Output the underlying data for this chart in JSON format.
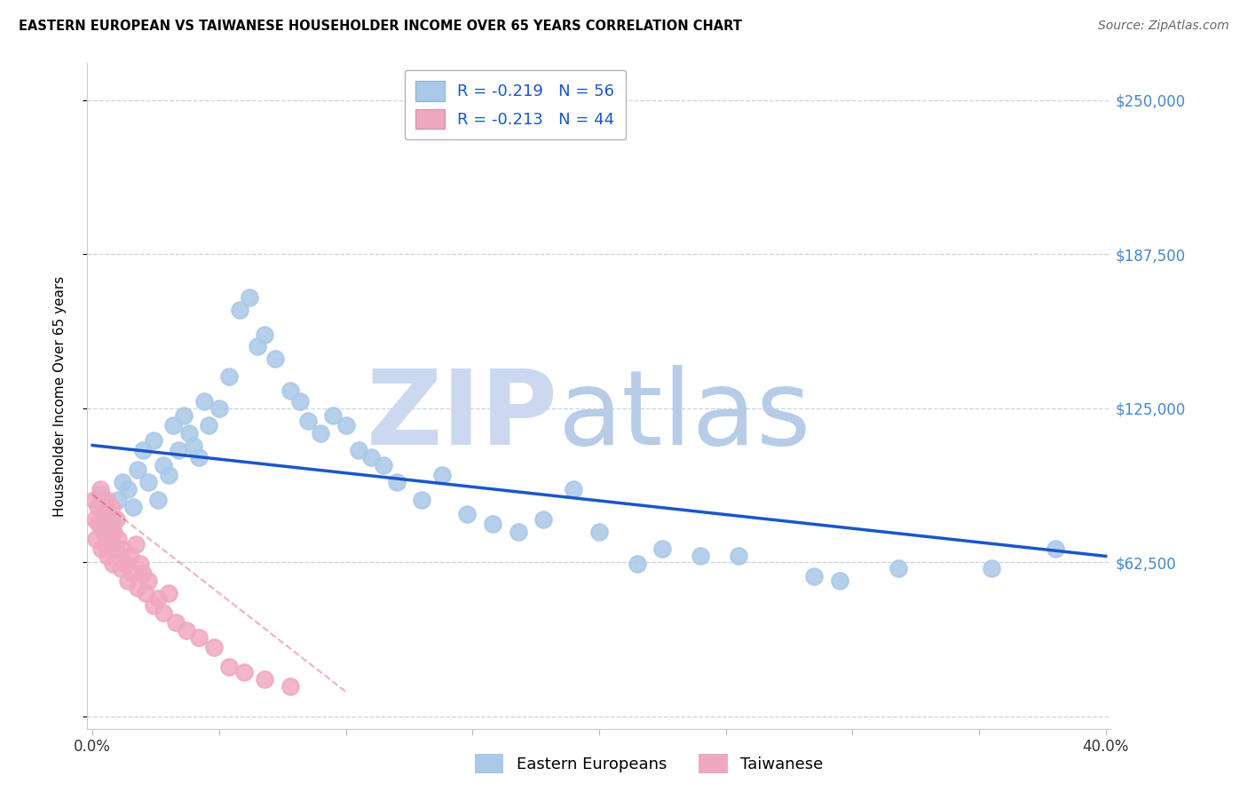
{
  "title": "EASTERN EUROPEAN VS TAIWANESE HOUSEHOLDER INCOME OVER 65 YEARS CORRELATION CHART",
  "source": "Source: ZipAtlas.com",
  "ylabel": "Householder Income Over 65 years",
  "xlim": [
    -0.002,
    0.402
  ],
  "ylim": [
    -5000,
    265000
  ],
  "yticks": [
    0,
    62500,
    125000,
    187500,
    250000
  ],
  "ytick_labels_right": [
    "",
    "$62,500",
    "$125,000",
    "$187,500",
    "$250,000"
  ],
  "xticks": [
    0.0,
    0.05,
    0.1,
    0.15,
    0.2,
    0.25,
    0.3,
    0.35,
    0.4
  ],
  "xtick_labels": [
    "0.0%",
    "",
    "",
    "",
    "",
    "",
    "",
    "",
    "40.0%"
  ],
  "blue_R": "-0.219",
  "blue_N": "56",
  "pink_R": "-0.213",
  "pink_N": "44",
  "blue_color": "#aac8e8",
  "pink_color": "#f0a8c0",
  "blue_line_color": "#1a55cc",
  "pink_line_color": "#cc2050",
  "watermark_zip_color": "#ccd8f0",
  "watermark_atlas_color": "#b8cce8",
  "legend_label_color": "#1a55cc",
  "ytick_label_color": "#4488cc",
  "xtick_label_color": "#333333",
  "grid_color": "#c8d4e0",
  "blue_x": [
    0.003,
    0.006,
    0.008,
    0.01,
    0.012,
    0.014,
    0.016,
    0.018,
    0.02,
    0.022,
    0.024,
    0.026,
    0.028,
    0.03,
    0.032,
    0.034,
    0.036,
    0.038,
    0.04,
    0.042,
    0.044,
    0.046,
    0.05,
    0.054,
    0.058,
    0.062,
    0.065,
    0.068,
    0.072,
    0.078,
    0.082,
    0.085,
    0.09,
    0.095,
    0.1,
    0.105,
    0.11,
    0.115,
    0.12,
    0.13,
    0.138,
    0.148,
    0.158,
    0.168,
    0.178,
    0.19,
    0.2,
    0.215,
    0.225,
    0.24,
    0.255,
    0.285,
    0.295,
    0.318,
    0.355,
    0.38
  ],
  "blue_y": [
    90000,
    82000,
    78000,
    88000,
    95000,
    92000,
    85000,
    100000,
    108000,
    95000,
    112000,
    88000,
    102000,
    98000,
    118000,
    108000,
    122000,
    115000,
    110000,
    105000,
    128000,
    118000,
    125000,
    138000,
    165000,
    170000,
    150000,
    155000,
    145000,
    132000,
    128000,
    120000,
    115000,
    122000,
    118000,
    108000,
    105000,
    102000,
    95000,
    88000,
    98000,
    82000,
    78000,
    75000,
    80000,
    92000,
    75000,
    62000,
    68000,
    65000,
    65000,
    57000,
    55000,
    60000,
    60000,
    68000
  ],
  "pink_x": [
    0.0005,
    0.001,
    0.0015,
    0.002,
    0.0025,
    0.003,
    0.0035,
    0.004,
    0.0045,
    0.005,
    0.0055,
    0.006,
    0.0065,
    0.007,
    0.0075,
    0.008,
    0.0085,
    0.009,
    0.0095,
    0.01,
    0.011,
    0.012,
    0.013,
    0.014,
    0.015,
    0.016,
    0.017,
    0.018,
    0.019,
    0.02,
    0.021,
    0.022,
    0.024,
    0.026,
    0.028,
    0.03,
    0.033,
    0.037,
    0.042,
    0.048,
    0.054,
    0.06,
    0.068,
    0.078
  ],
  "pink_y": [
    88000,
    80000,
    72000,
    85000,
    78000,
    92000,
    68000,
    75000,
    82000,
    70000,
    88000,
    65000,
    78000,
    72000,
    85000,
    62000,
    75000,
    68000,
    80000,
    72000,
    60000,
    68000,
    62000,
    55000,
    65000,
    58000,
    70000,
    52000,
    62000,
    58000,
    50000,
    55000,
    45000,
    48000,
    42000,
    50000,
    38000,
    35000,
    32000,
    28000,
    20000,
    18000,
    15000,
    12000
  ],
  "blue_line_x0": 0.0,
  "blue_line_x1": 0.4,
  "blue_line_y0": 110000,
  "blue_line_y1": 65000,
  "pink_line_x0": 0.0,
  "pink_line_x1": 0.1,
  "pink_line_y0": 90000,
  "pink_line_y1": 10000
}
